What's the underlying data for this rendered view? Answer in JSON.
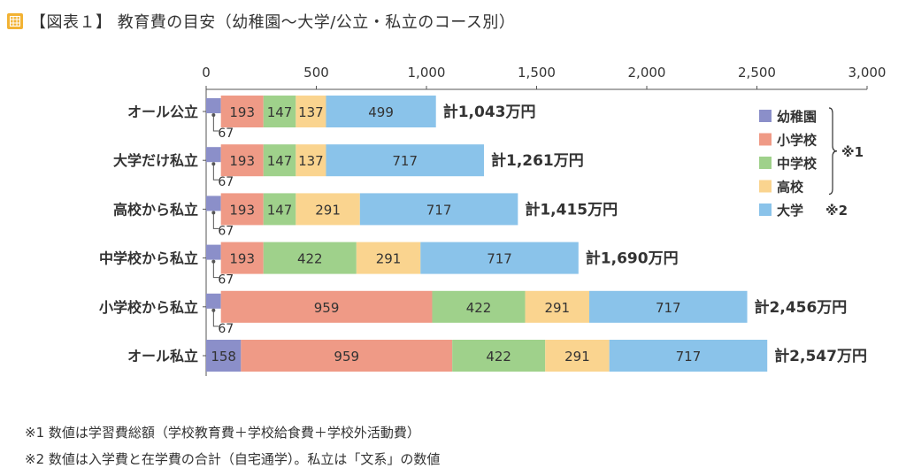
{
  "header": {
    "icon": "table-icon",
    "title": "【図表１】 教育費の目安（幼稚園〜大学/公立・私立のコース別）"
  },
  "chart_data": {
    "type": "bar",
    "orientation": "horizontal",
    "stacked": true,
    "xlim": [
      0,
      3000
    ],
    "xticks": [
      0,
      500,
      1000,
      1500,
      2000,
      2500,
      3000
    ],
    "xtick_labels": [
      "0",
      "500",
      "1,000",
      "1,500",
      "2,000",
      "2,500",
      "3,000"
    ],
    "categories": [
      "オール公立",
      "大学だけ私立",
      "高校から私立",
      "中学校から私立",
      "小学校から私立",
      "オール私立"
    ],
    "series": [
      {
        "name": "幼稚園",
        "color": "#8b8fc9",
        "values": [
          67,
          67,
          67,
          67,
          67,
          158
        ]
      },
      {
        "name": "小学校",
        "color": "#ef9a86",
        "values": [
          193,
          193,
          193,
          193,
          959,
          959
        ]
      },
      {
        "name": "中学校",
        "color": "#9fd18b",
        "values": [
          147,
          147,
          147,
          422,
          422,
          422
        ]
      },
      {
        "name": "高校",
        "color": "#fad48f",
        "values": [
          137,
          137,
          291,
          291,
          291,
          291
        ]
      },
      {
        "name": "大学",
        "color": "#8ac3ea",
        "values": [
          499,
          717,
          717,
          717,
          717,
          717
        ]
      }
    ],
    "totals": [
      "計1,043万円",
      "計1,261万円",
      "計1,415万円",
      "計1,690万円",
      "計2,456万円",
      "計2,547万円"
    ],
    "legend_position": "right",
    "legend_notes": [
      "※1",
      "※2"
    ]
  },
  "notes": [
    "※1 数値は学習費総額（学校教育費＋学校給食費＋学校外活動費）",
    "※2 数値は入学費と在学費の合計（自宅通学）。私立は「文系」の数値"
  ]
}
